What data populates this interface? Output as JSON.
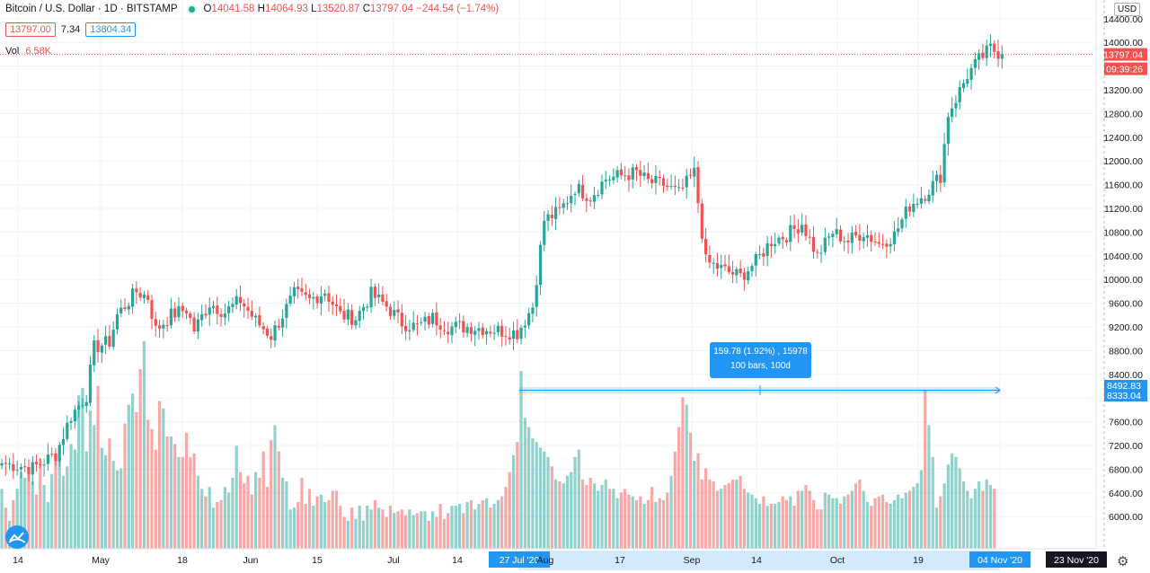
{
  "header": {
    "symbol": "Bitcoin / U.S. Dollar · 1D · BITSTAMP",
    "ohlc": {
      "o": "14041.58",
      "h": "14064.93",
      "l": "13520.87",
      "c": "13797.04",
      "chg": "−244.54 (−1.74%)"
    },
    "sell_price": "13797.00",
    "spread": "7.34",
    "buy_price": "13804.34",
    "volume_label": "Vol",
    "volume_value": "6.58K",
    "currency": "USD"
  },
  "colors": {
    "up": "#26a69a",
    "down": "#ef5350",
    "accent": "#2196f3",
    "grid": "#f0f3fa"
  },
  "icons": [
    "tradingview-logo-icon",
    "gear-icon"
  ],
  "chart_data": {
    "type": "candlestick",
    "title": "Bitcoin / U.S. Dollar · 1D · BITSTAMP",
    "y_axis": {
      "ylim": [
        5700,
        14900
      ],
      "ticks": [
        6000,
        6400,
        6800,
        7200,
        7600,
        8000,
        8400,
        8800,
        9200,
        9600,
        10000,
        10400,
        10800,
        11200,
        11600,
        12000,
        12400,
        12800,
        13200,
        13600,
        14000,
        14400
      ]
    },
    "x_axis": {
      "labels": [
        "14",
        "May",
        "18",
        "Jun",
        "15",
        "Jul",
        "14",
        "27 Jul '20",
        "Aug",
        "17",
        "Sep",
        "14",
        "Oct",
        "19",
        "04 Nov '20",
        "23 Nov '20"
      ]
    },
    "last_price": {
      "value": "13797.04",
      "countdown": "09:39:26"
    },
    "measure": {
      "price_labels": [
        "8492.83",
        "8333.04"
      ],
      "text_line1": "159.78 (1.92%) , 15978",
      "text_line2": "100 bars, 100d"
    },
    "grid": true,
    "anchors": [
      [
        0,
        6900
      ],
      [
        8,
        6820
      ],
      [
        14,
        7050
      ],
      [
        18,
        7700
      ],
      [
        22,
        8050
      ],
      [
        24,
        8850
      ],
      [
        28,
        8950
      ],
      [
        30,
        9400
      ],
      [
        35,
        9800
      ],
      [
        38,
        9700
      ],
      [
        40,
        9150
      ],
      [
        44,
        9400
      ],
      [
        48,
        9500
      ],
      [
        50,
        9150
      ],
      [
        54,
        9600
      ],
      [
        58,
        9450
      ],
      [
        62,
        9650
      ],
      [
        66,
        9300
      ],
      [
        70,
        9050
      ],
      [
        76,
        9750
      ],
      [
        80,
        9650
      ],
      [
        84,
        9800
      ],
      [
        88,
        9400
      ],
      [
        92,
        9350
      ],
      [
        96,
        9750
      ],
      [
        100,
        9550
      ],
      [
        104,
        9270
      ],
      [
        108,
        9200
      ],
      [
        112,
        9350
      ],
      [
        116,
        9200
      ],
      [
        122,
        9200
      ],
      [
        128,
        9150
      ],
      [
        134,
        9100
      ],
      [
        138,
        9550
      ],
      [
        141,
        11000
      ],
      [
        145,
        11150
      ],
      [
        149,
        11550
      ],
      [
        153,
        11400
      ],
      [
        157,
        11700
      ],
      [
        161,
        11750
      ],
      [
        165,
        11800
      ],
      [
        168,
        11650
      ],
      [
        172,
        11600
      ],
      [
        176,
        11450
      ],
      [
        180,
        11800
      ],
      [
        183,
        10300
      ],
      [
        188,
        10150
      ],
      [
        192,
        10050
      ],
      [
        196,
        10300
      ],
      [
        200,
        10650
      ],
      [
        204,
        10750
      ],
      [
        208,
        10950
      ],
      [
        212,
        10400
      ],
      [
        216,
        10800
      ],
      [
        220,
        10650
      ],
      [
        224,
        10800
      ],
      [
        228,
        10600
      ],
      [
        232,
        10750
      ],
      [
        236,
        11250
      ],
      [
        240,
        11450
      ],
      [
        244,
        11750
      ],
      [
        246,
        12800
      ],
      [
        248,
        13050
      ],
      [
        251,
        13450
      ],
      [
        254,
        13700
      ],
      [
        257,
        13900
      ],
      [
        260,
        13797
      ]
    ],
    "volume_scale": [
      0,
      12000
    ],
    "volumes": [
      3200,
      2200,
      1500,
      2600,
      3200,
      4100,
      3800,
      4200,
      3600,
      2900,
      4800,
      3400,
      2500,
      4000,
      5100,
      4800,
      3900,
      4400,
      5600,
      5300,
      8200,
      8600,
      5200,
      7400,
      6600,
      8700,
      5400,
      5000,
      5900,
      4700,
      4200,
      4300,
      6700,
      7700,
      8300,
      7300,
      9600,
      11100,
      6900,
      6400,
      5300,
      7900,
      7500,
      6000,
      6000,
      5600,
      4900,
      4900,
      6200,
      4900,
      5100,
      3900,
      3200,
      2800,
      3300,
      2200,
      2500,
      2600,
      3300,
      3000,
      3800,
      5500,
      4100,
      3500,
      3900,
      2900,
      4100,
      3800,
      5200,
      3300,
      5800,
      6600,
      5200,
      3800,
      3600,
      2100,
      2200,
      2500,
      3800,
      2400,
      3200,
      2300,
      2800,
      2900,
      2500,
      2600,
      3100,
      3100,
      2300,
      1700,
      1500,
      2200,
      1600,
      2300,
      1500,
      2300,
      2100,
      2600,
      2200,
      2100,
      1700,
      2300,
      1900,
      2000,
      2100,
      1800,
      2100,
      1800,
      1900,
      2000,
      2000,
      1500,
      2000,
      1700,
      2400,
      1600,
      1900,
      2300,
      2300,
      2400,
      1900,
      2500,
      2600,
      2100,
      2400,
      2600,
      2700,
      2200,
      2400,
      2600,
      2800,
      3300,
      4100,
      5000,
      5700,
      9500,
      7000,
      6500,
      5900,
      5700,
      5400,
      5200,
      4900,
      4400,
      3700,
      3600,
      3500,
      3900,
      4100,
      4900,
      5300,
      3700,
      3400,
      3800,
      3500,
      3100,
      3400,
      3700,
      3200,
      3200,
      2700,
      3000,
      3200,
      2900,
      2800,
      2600,
      2800,
      2400,
      2600,
      3300,
      2500,
      2700,
      2600,
      3000,
      3900,
      5200,
      6500,
      8100,
      7700,
      6200,
      4700,
      5100,
      3700,
      4300,
      3700,
      3600,
      3100,
      3200,
      3400,
      3500,
      3700,
      3700,
      3900,
      3200,
      3000,
      2900,
      2700,
      2400,
      2800,
      2300,
      2400,
      2400,
      2500,
      2800,
      2600,
      2800,
      2300,
      3100,
      3100,
      3400,
      3100,
      2600,
      2100,
      2100,
      3000,
      2900,
      2700,
      2700,
      2400,
      2800,
      2900,
      3100,
      3500,
      3700,
      3100,
      2500,
      2300,
      2700,
      2800,
      2900,
      2500,
      2400,
      2600,
      2900,
      2700,
      3000,
      3100,
      3300,
      3500,
      4200,
      8500,
      6600,
      4900,
      2200,
      2800,
      3500,
      4500,
      5100,
      4900,
      4300,
      3600,
      3100,
      2700,
      3200,
      3600,
      3100,
      3700,
      3400,
      3200
    ]
  }
}
